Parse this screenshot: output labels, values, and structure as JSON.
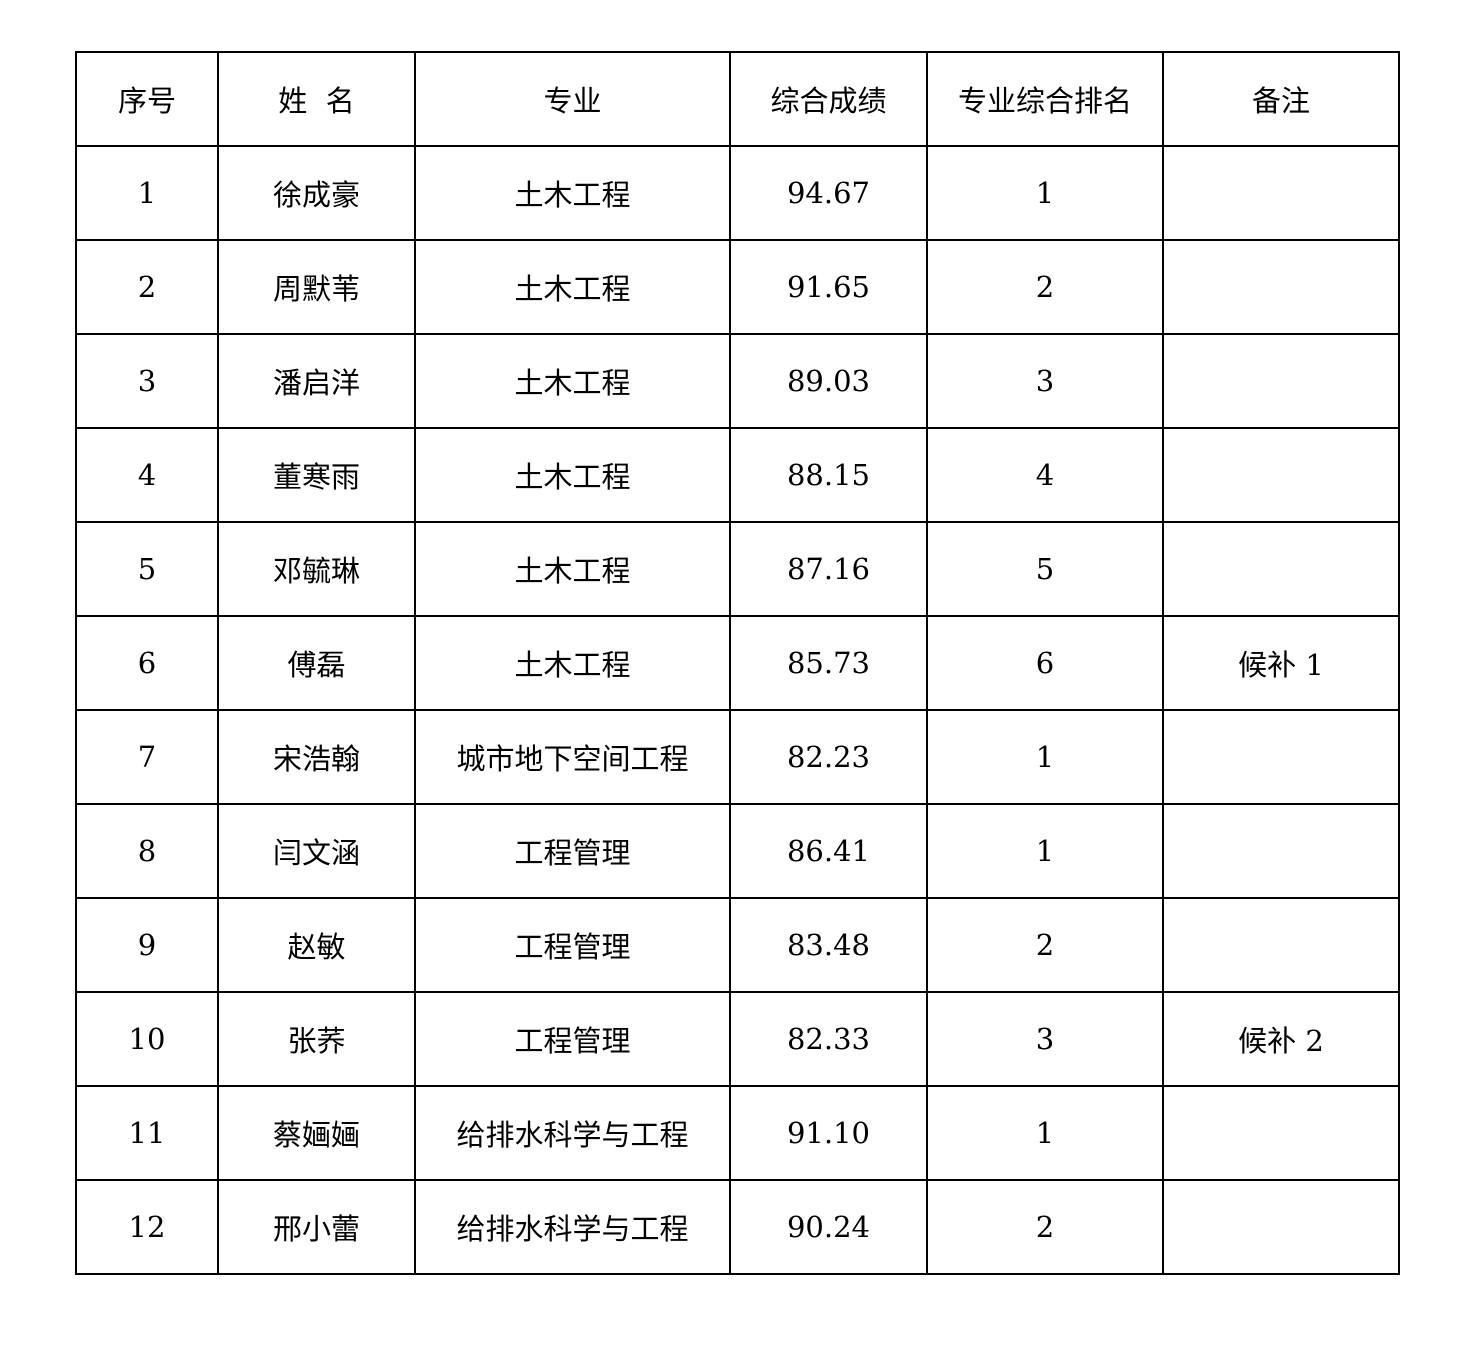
{
  "table": {
    "headers": [
      "序号",
      "姓  名",
      "专业",
      "综合成绩",
      "专业综合排名",
      "备注"
    ],
    "rows": [
      [
        "1",
        "徐成豪",
        "土木工程",
        "94.67",
        "1",
        ""
      ],
      [
        "2",
        "周默苇",
        "土木工程",
        "91.65",
        "2",
        ""
      ],
      [
        "3",
        "潘启洋",
        "土木工程",
        "89.03",
        "3",
        ""
      ],
      [
        "4",
        "董寒雨",
        "土木工程",
        "88.15",
        "4",
        ""
      ],
      [
        "5",
        "邓毓琳",
        "土木工程",
        "87.16",
        "5",
        ""
      ],
      [
        "6",
        "傅磊",
        "土木工程",
        "85.73",
        "6",
        "候补 1"
      ],
      [
        "7",
        "宋浩翰",
        "城市地下空间工程",
        "82.23",
        "1",
        ""
      ],
      [
        "8",
        "闫文涵",
        "工程管理",
        "86.41",
        "1",
        ""
      ],
      [
        "9",
        "赵敏",
        "工程管理",
        "83.48",
        "2",
        ""
      ],
      [
        "10",
        "张荞",
        "工程管理",
        "82.33",
        "3",
        "候补 2"
      ],
      [
        "11",
        "蔡婳婳",
        "给排水科学与工程",
        "91.10",
        "1",
        ""
      ],
      [
        "12",
        "邢小蕾",
        "给排水科学与工程",
        "90.24",
        "2",
        ""
      ]
    ]
  }
}
